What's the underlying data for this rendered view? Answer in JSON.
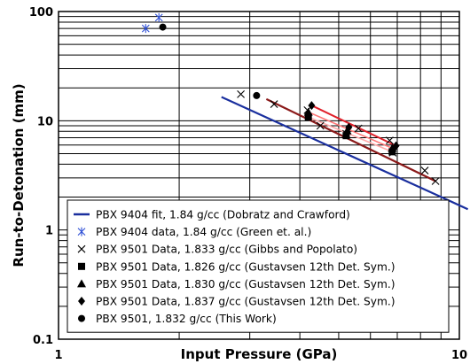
{
  "chart_data": {
    "type": "scatter",
    "xlabel": "Input Pressure (GPa)",
    "ylabel": "Run-to-Detonation (mm)",
    "x_scale": "log",
    "y_scale": "log",
    "xlim": [
      1,
      10
    ],
    "ylim": [
      0.1,
      100
    ],
    "x_ticks": [
      {
        "value": 1,
        "label": "1"
      },
      {
        "value": 10,
        "label": "10"
      }
    ],
    "y_ticks": [
      {
        "value": 100,
        "label": "100"
      },
      {
        "value": 10,
        "label": "10"
      },
      {
        "value": 1,
        "label": "1"
      },
      {
        "value": 0.1,
        "label": "0.1"
      }
    ],
    "grid": true,
    "legend_position": "bottom-left",
    "series": [
      {
        "name": "PBX 9404 fit, 1.84 g/cc (Dobratz and Crawford)",
        "kind": "line",
        "color": "#1a2f9e",
        "marker": "none",
        "points": [
          [
            2.55,
            16.5
          ],
          [
            10.5,
            1.55
          ]
        ]
      },
      {
        "name": "PBX 9404 data, 1.84 g/cc (Green et. al.)",
        "kind": "scatter",
        "color": "#2e4fd6",
        "marker": "asterisk",
        "points": [
          [
            1.65,
            70
          ],
          [
            1.78,
            88
          ]
        ]
      },
      {
        "name": "PBX 9501 Data, 1.833 g/cc (Gibbs and Popolato)",
        "kind": "scatter",
        "color": "#000000",
        "marker": "x",
        "points": [
          [
            2.85,
            17.5
          ],
          [
            3.45,
            14.2
          ],
          [
            4.18,
            12.5
          ],
          [
            4.5,
            9.0
          ],
          [
            5.22,
            7.6
          ],
          [
            5.6,
            8.5
          ],
          [
            6.7,
            6.6
          ],
          [
            6.82,
            5.1
          ],
          [
            8.2,
            3.5
          ],
          [
            8.72,
            2.8
          ]
        ]
      },
      {
        "name": "PBX 9501 Data, 1.826 g/cc (Gustavsen 12th Det. Sym.)",
        "kind": "scatter",
        "color": "#000000",
        "marker": "square",
        "points": [
          [
            4.2,
            10.8
          ],
          [
            5.22,
            7.3
          ],
          [
            6.8,
            5.2
          ]
        ]
      },
      {
        "name": "PBX 9501 Data, 1.830 g/cc (Gustavsen 12th Det. Sym.)",
        "kind": "scatter",
        "color": "#000000",
        "marker": "triangle",
        "points": [
          [
            4.2,
            12.0
          ],
          [
            5.25,
            8.1
          ],
          [
            6.8,
            5.6
          ]
        ]
      },
      {
        "name": "PBX 9501 Data, 1.837 g/cc (Gustavsen 12th Det. Sym.)",
        "kind": "scatter",
        "color": "#000000",
        "marker": "diamond",
        "points": [
          [
            4.28,
            13.8
          ],
          [
            5.3,
            8.7
          ],
          [
            6.95,
            5.9
          ]
        ]
      },
      {
        "name": "PBX 9501, 1.832 g/cc (This Work)",
        "kind": "scatter",
        "color": "#000000",
        "marker": "circle",
        "points": [
          [
            1.82,
            72
          ],
          [
            3.12,
            17
          ]
        ]
      }
    ],
    "fit_lines": [
      {
        "color": "#8b1a1a",
        "width": 2.2,
        "points": [
          [
            3.3,
            15.8
          ],
          [
            8.72,
            2.8
          ]
        ]
      },
      {
        "color": "#e0202a",
        "width": 2,
        "points": [
          [
            4.28,
            13.8
          ],
          [
            6.95,
            5.9
          ]
        ]
      },
      {
        "color": "#ff7777",
        "width": 1.6,
        "points": [
          [
            4.2,
            12.0
          ],
          [
            6.8,
            5.6
          ]
        ]
      },
      {
        "color": "#ffaaaa",
        "width": 1.6,
        "points": [
          [
            4.2,
            10.8
          ],
          [
            6.8,
            5.2
          ]
        ]
      }
    ]
  }
}
